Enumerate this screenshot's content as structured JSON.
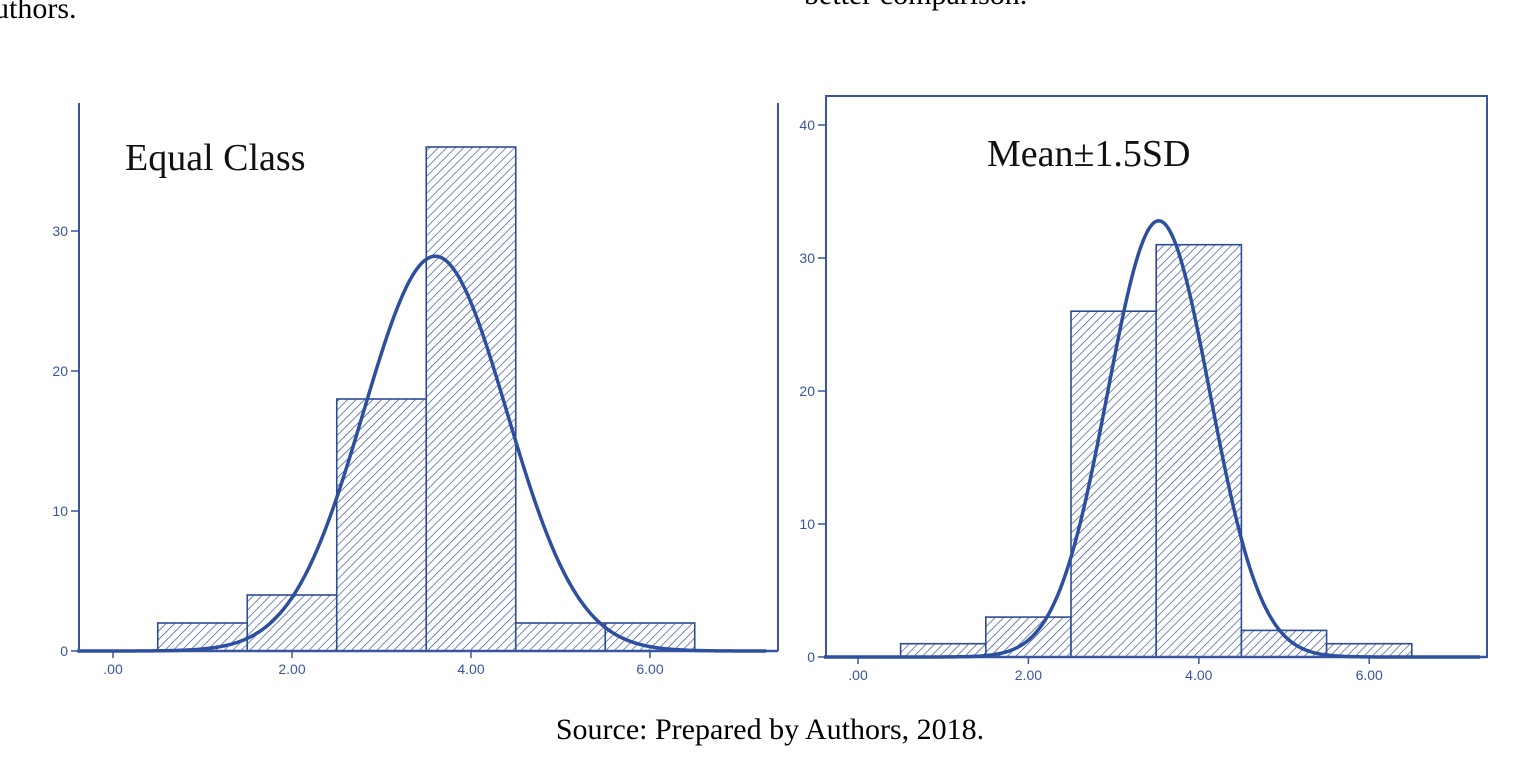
{
  "page_fragments": {
    "top_left": "uthors.",
    "top_right": "better comparison."
  },
  "caption": "Source: Prepared by Authors, 2018.",
  "colors": {
    "axis": "#3a55a0",
    "bar_stroke": "#2d4a94",
    "hatch": "#2d4a94",
    "curve": "#2d4fa0"
  },
  "chart_data": [
    {
      "type": "bar",
      "subtype": "histogram",
      "title": "Equal Class",
      "xlabel": "",
      "ylabel": "",
      "bins": [
        {
          "from": 0.5,
          "to": 1.5,
          "value": 2
        },
        {
          "from": 1.5,
          "to": 2.5,
          "value": 4
        },
        {
          "from": 2.5,
          "to": 3.5,
          "value": 18
        },
        {
          "from": 3.5,
          "to": 4.5,
          "value": 36
        },
        {
          "from": 4.5,
          "to": 5.5,
          "value": 2
        },
        {
          "from": 5.5,
          "to": 6.5,
          "value": 2
        }
      ],
      "normal_curve": {
        "mean": 3.6,
        "peak": 28.2,
        "sd": 0.8
      },
      "xticks": [
        {
          "value": 0,
          "label": ".00"
        },
        {
          "value": 2,
          "label": "2.00"
        },
        {
          "value": 4,
          "label": "4.00"
        },
        {
          "value": 6,
          "label": "6.00"
        }
      ],
      "yticks": [
        0,
        10,
        20,
        30
      ],
      "xlim": [
        -0.4,
        7.3
      ],
      "ylim": [
        0,
        39
      ],
      "frame": "left-right",
      "grid": false
    },
    {
      "type": "bar",
      "subtype": "histogram",
      "title": "Mean±1.5SD",
      "xlabel": "",
      "ylabel": "",
      "bins": [
        {
          "from": 0.5,
          "to": 1.5,
          "value": 1
        },
        {
          "from": 1.5,
          "to": 2.5,
          "value": 3
        },
        {
          "from": 2.5,
          "to": 3.5,
          "value": 26
        },
        {
          "from": 3.5,
          "to": 4.5,
          "value": 31
        },
        {
          "from": 4.5,
          "to": 5.5,
          "value": 2
        },
        {
          "from": 5.5,
          "to": 6.5,
          "value": 1
        }
      ],
      "normal_curve": {
        "mean": 3.53,
        "peak": 32.8,
        "sd": 0.6
      },
      "xticks": [
        {
          "value": 0,
          "label": ".00"
        },
        {
          "value": 2,
          "label": "2.00"
        },
        {
          "value": 4,
          "label": "4.00"
        },
        {
          "value": 6,
          "label": "6.00"
        }
      ],
      "yticks": [
        0,
        10,
        20,
        30,
        40
      ],
      "xlim": [
        -0.4,
        7.3
      ],
      "ylim": [
        0,
        40.5
      ],
      "frame": "box",
      "grid": false
    }
  ]
}
